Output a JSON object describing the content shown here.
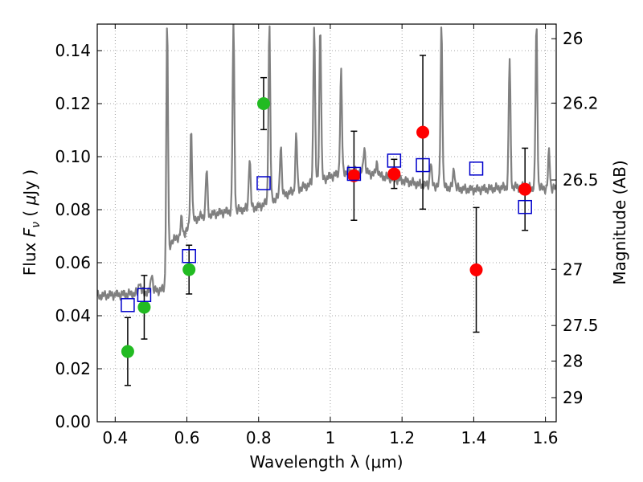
{
  "chart_data": {
    "type": "scatter",
    "xlabel": "Wavelength  λ (μm)",
    "ylabel": "Flux  F_ν  ( μJy )",
    "ylabel_parts": {
      "pre": "Flux  ",
      "sym": "F",
      "sub": "ν",
      "mid": "  ( ",
      "mu": "μ",
      "post": "Jy )"
    },
    "y2label": "Magnitude (AB)",
    "xlim": [
      0.35,
      1.63
    ],
    "ylim": [
      0.0,
      0.15
    ],
    "grid": true,
    "x_ticks": [
      0.4,
      0.6,
      0.8,
      1.0,
      1.2,
      1.4,
      1.6
    ],
    "x_tick_labels": [
      "0.4",
      "0.6",
      "0.8",
      "1",
      "1.2",
      "1.4",
      "1.6"
    ],
    "y_ticks": [
      0.0,
      0.02,
      0.04,
      0.06,
      0.08,
      0.1,
      0.12,
      0.14
    ],
    "y_tick_labels": [
      "0.00",
      "0.02",
      "0.04",
      "0.06",
      "0.08",
      "0.10",
      "0.12",
      "0.14"
    ],
    "mag_ticks": [
      {
        "label": "26",
        "flux": 0.1445
      },
      {
        "label": "26.2",
        "flux": 0.1202
      },
      {
        "label": "26.5",
        "flux": 0.0912
      },
      {
        "label": "27",
        "flux": 0.0575
      },
      {
        "label": "27.5",
        "flux": 0.0363
      },
      {
        "label": "28",
        "flux": 0.0229
      },
      {
        "label": "29",
        "flux": 0.0091
      }
    ],
    "colors": {
      "model": "#808080",
      "green": "#22bb22",
      "red": "#ff0000",
      "blue": "#0000cc",
      "errorbar": "#000000",
      "grid": "#888888"
    },
    "series": [
      {
        "name": "green-photometry",
        "color": "#22bb22",
        "marker": "circle",
        "points": [
          {
            "x": 0.435,
            "y": 0.0265,
            "err": 0.0128
          },
          {
            "x": 0.481,
            "y": 0.0432,
            "err": 0.012
          },
          {
            "x": 0.606,
            "y": 0.0574,
            "err": 0.0092
          },
          {
            "x": 0.814,
            "y": 0.12,
            "err": 0.0098
          }
        ]
      },
      {
        "name": "red-photometry",
        "color": "#ff0000",
        "marker": "circle",
        "points": [
          {
            "x": 1.066,
            "y": 0.0928,
            "err": 0.0168
          },
          {
            "x": 1.178,
            "y": 0.0935,
            "err": 0.0055
          },
          {
            "x": 1.258,
            "y": 0.1092,
            "err": 0.029
          },
          {
            "x": 1.407,
            "y": 0.0573,
            "err": 0.0235
          },
          {
            "x": 1.543,
            "y": 0.0877,
            "err": 0.0155
          }
        ]
      },
      {
        "name": "model-synthetic-photometry",
        "color": "#0000cc",
        "marker": "open-square",
        "points": [
          {
            "x": 0.435,
            "y": 0.044
          },
          {
            "x": 0.481,
            "y": 0.0478
          },
          {
            "x": 0.606,
            "y": 0.0625
          },
          {
            "x": 0.814,
            "y": 0.09
          },
          {
            "x": 1.066,
            "y": 0.0935
          },
          {
            "x": 1.178,
            "y": 0.0985
          },
          {
            "x": 1.258,
            "y": 0.0968
          },
          {
            "x": 1.407,
            "y": 0.0955
          },
          {
            "x": 1.543,
            "y": 0.081
          }
        ]
      }
    ],
    "model_spectrum": {
      "name": "model-spectrum",
      "color": "#808080",
      "continuum": [
        [
          0.35,
          0.0475
        ],
        [
          0.38,
          0.0478
        ],
        [
          0.42,
          0.048
        ],
        [
          0.46,
          0.0485
        ],
        [
          0.5,
          0.049
        ],
        [
          0.535,
          0.05
        ],
        [
          0.545,
          0.052
        ],
        [
          0.555,
          0.068
        ],
        [
          0.58,
          0.07
        ],
        [
          0.6,
          0.072
        ],
        [
          0.62,
          0.076
        ],
        [
          0.64,
          0.0775
        ],
        [
          0.66,
          0.078
        ],
        [
          0.7,
          0.079
        ],
        [
          0.75,
          0.08
        ],
        [
          0.8,
          0.081
        ],
        [
          0.85,
          0.0845
        ],
        [
          0.9,
          0.087
        ],
        [
          0.95,
          0.09
        ],
        [
          1.0,
          0.0925
        ],
        [
          1.05,
          0.0945
        ],
        [
          1.1,
          0.094
        ],
        [
          1.15,
          0.0925
        ],
        [
          1.2,
          0.091
        ],
        [
          1.25,
          0.0895
        ],
        [
          1.3,
          0.089
        ],
        [
          1.35,
          0.088
        ],
        [
          1.4,
          0.0875
        ],
        [
          1.45,
          0.088
        ],
        [
          1.5,
          0.0885
        ],
        [
          1.55,
          0.0885
        ],
        [
          1.6,
          0.088
        ],
        [
          1.63,
          0.088
        ]
      ],
      "lines": [
        {
          "x": 0.468,
          "peak": 0.0535
        },
        {
          "x": 0.502,
          "peak": 0.0565
        },
        {
          "x": 0.545,
          "peak": 0.15
        },
        {
          "x": 0.585,
          "peak": 0.0765
        },
        {
          "x": 0.612,
          "peak": 0.111
        },
        {
          "x": 0.655,
          "peak": 0.095
        },
        {
          "x": 0.73,
          "peak": 0.15
        },
        {
          "x": 0.775,
          "peak": 0.1
        },
        {
          "x": 0.83,
          "peak": 0.15
        },
        {
          "x": 0.862,
          "peak": 0.105
        },
        {
          "x": 0.905,
          "peak": 0.108
        },
        {
          "x": 0.955,
          "peak": 0.15
        },
        {
          "x": 0.972,
          "peak": 0.15
        },
        {
          "x": 1.03,
          "peak": 0.132
        },
        {
          "x": 1.095,
          "peak": 0.104
        },
        {
          "x": 1.13,
          "peak": 0.098
        },
        {
          "x": 1.28,
          "peak": 0.098
        },
        {
          "x": 1.31,
          "peak": 0.15
        },
        {
          "x": 1.345,
          "peak": 0.096
        },
        {
          "x": 1.5,
          "peak": 0.137
        },
        {
          "x": 1.575,
          "peak": 0.15
        },
        {
          "x": 1.61,
          "peak": 0.102
        }
      ]
    }
  }
}
